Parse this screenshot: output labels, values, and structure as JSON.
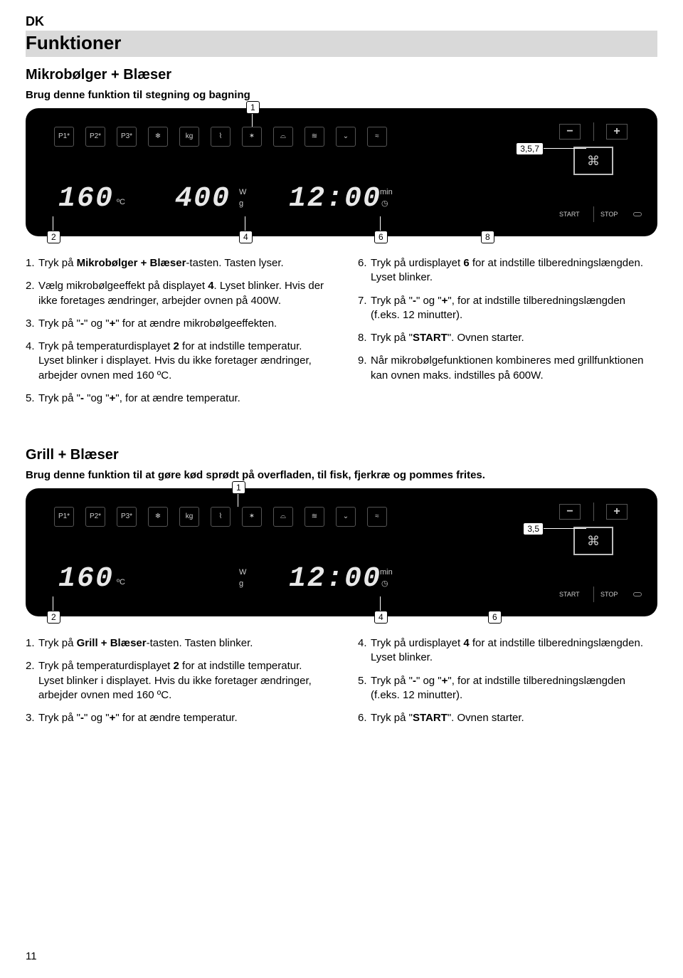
{
  "lang_tag": "DK",
  "title": "Funktioner",
  "section1": {
    "heading": "Mikrobølger + Blæser",
    "intro": "Brug denne funktion til stegning og bagning",
    "panel": {
      "callouts": {
        "c1": "1",
        "c2": "2",
        "c357": "3,5,7",
        "c4": "4",
        "c6": "6",
        "c8": "8"
      },
      "icons": [
        "P1*",
        "P2*",
        "P3*",
        "❄",
        "kg",
        "⌇",
        "✶",
        "⌓",
        "≋",
        "⌄",
        "≈"
      ],
      "temp": "160",
      "temp_unit": "ºC",
      "weight": "400",
      "weight_unit_w": "W",
      "weight_unit_g": "g",
      "time": "12:00",
      "time_unit_min": "min",
      "time_unit_clock": "◷",
      "minus": "−",
      "plus": "+",
      "selector": "⌘",
      "start": "START",
      "stop": "STOP"
    },
    "left": [
      "1. Tryk på <strong>Mikrobølger + Blæser</strong>-tasten. Tasten lyser.",
      "2. Vælg mikrobølgeeffekt på displayet <strong>4</strong>. Lyset blinker. Hvis der ikke foretages ændringer, arbejder ovnen på 400W.",
      "3. Tryk på \"<strong>-</strong>\" og \"<strong>+</strong>\" for at ændre mikrobølge­effekten.",
      "4. Tryk på temperaturdisplayet <strong>2</strong> for at indstille temperatur. Lyset blinker i displayet. Hvis du ikke foretager ændringer, arbejder ovnen med 160 ºC.",
      "5. Tryk på \"<strong>-</strong> \"og \"<strong>+</strong>\", for at ændre temperatur."
    ],
    "right": [
      "6. Tryk på urdisplayet <strong>6</strong> for at indstille tilberedningslængden. Lyset blinker.",
      "7. Tryk på \"<strong>-</strong>\" og \"<strong>+</strong>\", for at indstille tilberedningslængden (f.eks. 12 minutter).",
      "8. Tryk på \"<strong>START</strong>\". Ovnen starter.",
      "9. Når mikrobølgefunktionen kombineres med grillfunktionen kan ovnen maks. indstilles på 600W."
    ]
  },
  "section2": {
    "heading": "Grill + Blæser",
    "intro": "Brug denne funktion til at gøre kød sprødt på overfladen, til fisk, fjerkræ og pommes frites.",
    "panel": {
      "callouts": {
        "c1": "1",
        "c2": "2",
        "c35": "3,5",
        "c4": "4",
        "c6": "6"
      },
      "icons": [
        "P1*",
        "P2*",
        "P3*",
        "❄",
        "kg",
        "⌇",
        "✶",
        "⌓",
        "≋",
        "⌄",
        "≈"
      ],
      "temp": "160",
      "temp_unit": "ºC",
      "weight": "",
      "weight_unit_w": "W",
      "weight_unit_g": "g",
      "time": "12:00",
      "time_unit_min": "min",
      "time_unit_clock": "◷",
      "minus": "−",
      "plus": "+",
      "selector": "⌘",
      "start": "START",
      "stop": "STOP"
    },
    "left": [
      "1. Tryk på <strong>Grill + Blæser</strong>-tasten. Tasten blinker.",
      "2. Tryk på temperaturdisplayet <strong>2</strong> for at indstille temperatur. Lyset blinker i displayet. Hvis du ikke foretager ændringer, arbejder ovnen med 160 ºC.",
      "3. Tryk på \"<strong>-</strong>\" og \"<strong>+</strong>\" for at ændre temperatur."
    ],
    "right": [
      "4. Tryk på urdisplayet <strong>4</strong> for at indstille tilberedningslængden. Lyset blinker.",
      "5. Tryk på \"<strong>-</strong>\" og \"<strong>+</strong>\", for at indstille tilberedningslængden (f.eks. 12 minutter).",
      "6. Tryk på \"<strong>START</strong>\". Ovnen starter."
    ]
  },
  "page_number": "11"
}
